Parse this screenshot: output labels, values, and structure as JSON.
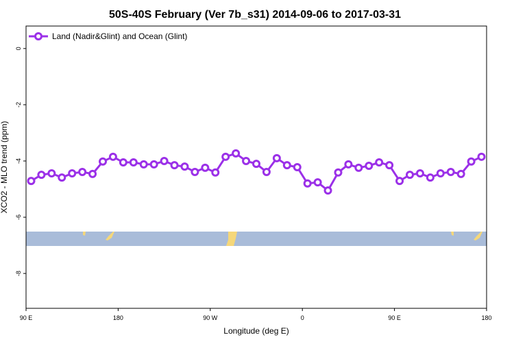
{
  "chart_data": {
    "type": "line",
    "title": "50S-40S February (Ver 7b_s31)   2014-09-06 to 2017-03-31",
    "x_label": "Longitude (deg E)",
    "y_label": "XCO2 - MLO trend (ppm)",
    "x": [
      95,
      105,
      115,
      125,
      135,
      145,
      155,
      165,
      175,
      185,
      195,
      205,
      215,
      225,
      235,
      245,
      255,
      265,
      275,
      285,
      295,
      305,
      315,
      325,
      335,
      345,
      355,
      365,
      375,
      385,
      395,
      405,
      415,
      425,
      435,
      445,
      455,
      465,
      475,
      485,
      495,
      505,
      515,
      525,
      535
    ],
    "series": [
      {
        "name": "Land (Nadir&Glint) and Ocean (Glint)",
        "color": "#9b30e8",
        "values": [
          -4.71,
          -4.49,
          -4.44,
          -4.59,
          -4.44,
          -4.39,
          -4.46,
          -4.02,
          -3.85,
          -4.05,
          -4.05,
          -4.12,
          -4.12,
          -4.0,
          -4.15,
          -4.2,
          -4.39,
          -4.24,
          -4.41,
          -3.85,
          -3.73,
          -4.0,
          -4.1,
          -4.39,
          -3.9,
          -4.15,
          -4.22,
          -4.8,
          -4.76,
          -5.05,
          -4.41,
          -4.12,
          -4.24,
          -4.17,
          -4.05,
          -4.15,
          -4.71,
          -4.49,
          -4.44,
          -4.59,
          -4.44,
          -4.39,
          -4.46,
          -4.02,
          -3.85
        ]
      }
    ],
    "xlim": [
      90,
      540
    ],
    "xticks": [
      {
        "value": 90,
        "label": "90 E"
      },
      {
        "value": 180,
        "label": "180"
      },
      {
        "value": 270,
        "label": "90 W"
      },
      {
        "value": 360,
        "label": "0"
      },
      {
        "value": 450,
        "label": "90 E"
      },
      {
        "value": 540,
        "label": "180"
      }
    ],
    "ylim": [
      -9.24,
      0.8
    ],
    "yticks": [
      0,
      -2,
      -4,
      -6,
      -8
    ],
    "legend": "top-left"
  }
}
